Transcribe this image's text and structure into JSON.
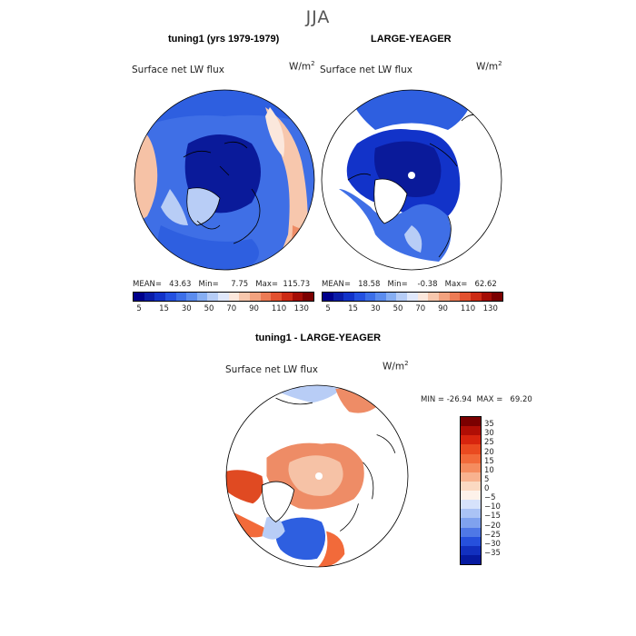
{
  "season": "JJA",
  "panels": [
    {
      "title": "tuning1 (yrs 1979-1979)",
      "variable": "Surface net LW flux",
      "units_base": "W/m",
      "units_exp": "2",
      "stats": "MEAN=   43.63   Min=     7.75   Max=  115.73"
    },
    {
      "title": "LARGE-YEAGER",
      "variable": "Surface net LW flux",
      "units_base": "W/m",
      "units_exp": "2",
      "stats": "MEAN=   18.58   Min=    -0.38   Max=   62.62"
    },
    {
      "title": "tuning1 - LARGE-YEAGER",
      "variable": "Surface net LW flux",
      "units_base": "W/m",
      "units_exp": "2",
      "stats": "MIN = -26.94  MAX =   69.20"
    }
  ],
  "field_colorbar": {
    "ticks": [
      "5",
      "15",
      "30",
      "50",
      "70",
      "90",
      "110",
      "130"
    ],
    "colors": [
      "#00008b",
      "#0a1ca8",
      "#1233c9",
      "#2451e0",
      "#3c6fe8",
      "#5b8cee",
      "#86aef3",
      "#b6cdf7",
      "#e0e8fb",
      "#fbe7dc",
      "#f7c7ad",
      "#f2a27f",
      "#ec7b55",
      "#e2512f",
      "#cc2a14",
      "#a40d05",
      "#7b0000"
    ]
  },
  "diff_colorbar": {
    "labels": [
      "35",
      "30",
      "25",
      "20",
      "15",
      "10",
      "5",
      "0",
      "−5",
      "−10",
      "−15",
      "−20",
      "−25",
      "−30",
      "−35"
    ],
    "colors": [
      "#7b0000",
      "#b00e05",
      "#d8250e",
      "#ea4a20",
      "#f26a3a",
      "#f58c5f",
      "#f8b28f",
      "#fbd9c2",
      "#fdf2ea",
      "#d6e2fb",
      "#aac3f5",
      "#7fa2ee",
      "#4f78e6",
      "#2650dc",
      "#1230bf",
      "#061aa0"
    ]
  },
  "map_colors": {
    "land": "#ffffff",
    "deep_blue": "#0a1a9a",
    "mid_blue": "#2e5fe0",
    "light_blue": "#5d8cee",
    "pale_blue": "#b8cdf6",
    "peach": "#f6c2a6",
    "salmon": "#ee8c66",
    "red_orange": "#e04a22",
    "dark_red": "#b21406"
  }
}
